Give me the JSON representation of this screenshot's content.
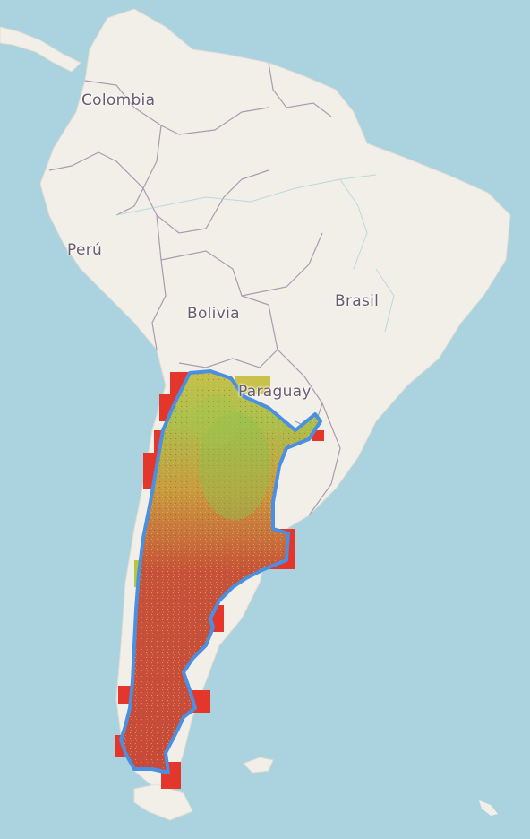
{
  "map": {
    "colors": {
      "ocean": "#aad3df",
      "land": "#f2efe9",
      "border": "#a89cae",
      "label": "#6a5a6e",
      "outline": "#4a90e2",
      "raster_low": "#d7382e",
      "raster_mid": "#c9c24a",
      "raster_high": "#7fc14e"
    },
    "country_labels": [
      {
        "id": "colombia",
        "text": "Colombia"
      },
      {
        "id": "peru",
        "text": "Perú"
      },
      {
        "id": "bolivia",
        "text": "Bolivia"
      },
      {
        "id": "brasil",
        "text": "Brasil"
      },
      {
        "id": "paraguay",
        "text": "Paraguay"
      }
    ],
    "overlay": {
      "region": "Argentina",
      "outline_color": "#4a90e2"
    }
  }
}
